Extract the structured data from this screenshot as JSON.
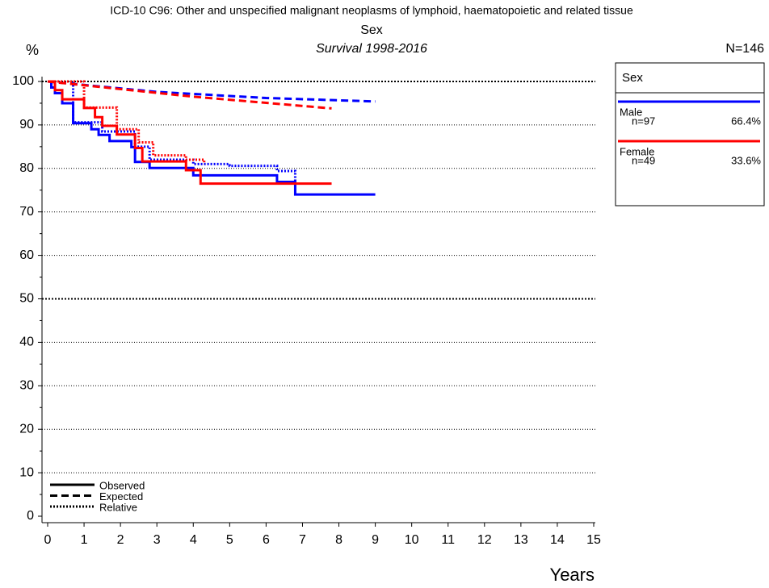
{
  "chart_data": {
    "type": "line",
    "title": "ICD-10 C96: Other and unspecified malignant neoplasms of lymphoid, haematopoietic and related tissue",
    "subtitle": "Sex",
    "period": "Survival 1998-2016",
    "ylabel": "%",
    "xlabel": "Years",
    "total_label": "N=146",
    "legend_title": "Sex",
    "xlim": [
      0,
      15
    ],
    "ylim": [
      0,
      100
    ],
    "xticks": [
      0,
      1,
      2,
      3,
      4,
      5,
      6,
      7,
      8,
      9,
      10,
      11,
      12,
      13,
      14,
      15
    ],
    "yticks": [
      0,
      10,
      20,
      30,
      40,
      50,
      60,
      70,
      80,
      90,
      100
    ],
    "grid": true,
    "line_styles": [
      {
        "name": "Observed",
        "key": "observed",
        "dash": "solid"
      },
      {
        "name": "Expected",
        "key": "expected",
        "dash": "dashed"
      },
      {
        "name": "Relative",
        "key": "relative",
        "dash": "dotted"
      }
    ],
    "series": [
      {
        "name": "Male",
        "color": "#0000ff",
        "count_label": "n=97",
        "share_label": "66.4%",
        "observed": {
          "x": [
            0,
            0.1,
            0.2,
            0.4,
            0.7,
            1.2,
            1.4,
            1.7,
            2.3,
            2.4,
            2.8,
            4.0,
            6.3,
            6.8,
            9.0
          ],
          "values": [
            100,
            98.6,
            97.3,
            95.0,
            90.4,
            89.0,
            87.7,
            86.3,
            84.9,
            81.5,
            80.1,
            78.4,
            76.9,
            74.0,
            74.0
          ]
        },
        "expected": {
          "x": [
            0,
            3,
            6,
            9
          ],
          "values": [
            100,
            97.6,
            96.2,
            95.4
          ]
        },
        "relative": {
          "x": [
            0,
            0.7,
            1.5,
            2.4,
            2.8,
            4.0,
            5.0,
            6.3,
            6.8
          ],
          "values": [
            100,
            90.6,
            88.5,
            85.0,
            82.0,
            81.0,
            80.6,
            79.4,
            77.0
          ]
        }
      },
      {
        "name": "Female",
        "color": "#ff0000",
        "count_label": "n=49",
        "share_label": "33.6%",
        "observed": {
          "x": [
            0,
            0.2,
            0.4,
            1.0,
            1.3,
            1.5,
            1.9,
            2.4,
            2.6,
            3.8,
            4.2,
            7.8
          ],
          "values": [
            100,
            98.0,
            95.9,
            93.9,
            91.8,
            89.8,
            87.8,
            84.7,
            81.6,
            79.6,
            76.5,
            76.5
          ]
        },
        "expected": {
          "x": [
            0,
            4,
            7.8
          ],
          "values": [
            100,
            96.5,
            93.8
          ]
        },
        "relative": {
          "x": [
            0,
            1.0,
            1.9,
            2.5,
            2.9,
            3.8,
            4.3
          ],
          "values": [
            100,
            94.0,
            89.0,
            86.0,
            83.0,
            82.0,
            81.0
          ]
        }
      }
    ]
  }
}
